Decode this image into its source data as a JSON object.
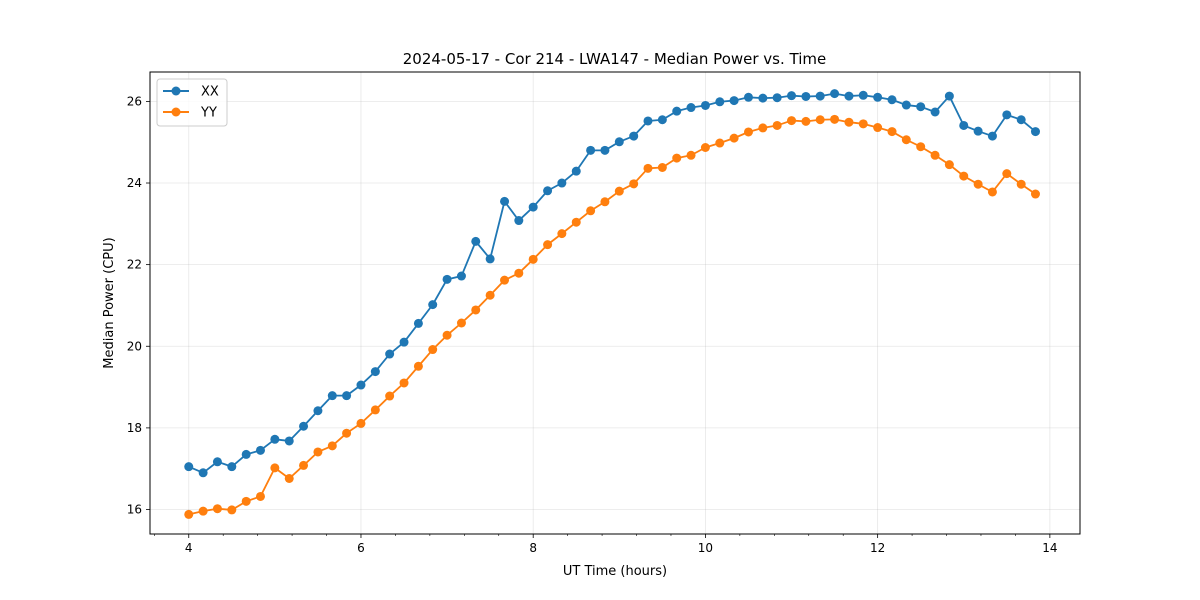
{
  "chart_data": {
    "type": "line",
    "title": "2024-05-17 - Cor 214 - LWA147 - Median Power vs. Time",
    "xlabel": "UT Time (hours)",
    "ylabel": "Median Power (CPU)",
    "xlim": [
      3.55,
      14.35
    ],
    "ylim": [
      15.4,
      26.72
    ],
    "xticks": [
      4,
      6,
      8,
      10,
      12,
      14
    ],
    "xtick_labels": [
      "4",
      "6",
      "8",
      "10",
      "12",
      "14"
    ],
    "yticks": [
      16,
      18,
      20,
      22,
      24,
      26
    ],
    "ytick_labels": [
      "16",
      "18",
      "20",
      "22",
      "24",
      "26"
    ],
    "grid": true,
    "legend_position": "top-left",
    "x": [
      4.0,
      4.167,
      4.333,
      4.5,
      4.667,
      4.833,
      5.0,
      5.167,
      5.333,
      5.5,
      5.667,
      5.833,
      6.0,
      6.167,
      6.333,
      6.5,
      6.667,
      6.833,
      7.0,
      7.167,
      7.333,
      7.5,
      7.667,
      7.833,
      8.0,
      8.167,
      8.333,
      8.5,
      8.667,
      8.833,
      9.0,
      9.167,
      9.333,
      9.5,
      9.667,
      9.833,
      10.0,
      10.167,
      10.333,
      10.5,
      10.667,
      10.833,
      11.0,
      11.167,
      11.333,
      11.5,
      11.667,
      11.833,
      12.0,
      12.167,
      12.333,
      12.5,
      12.667,
      12.833,
      13.0,
      13.167,
      13.333,
      13.5,
      13.667,
      13.833
    ],
    "series": [
      {
        "name": "XX",
        "color": "#1f77b4",
        "values": [
          17.05,
          16.9,
          17.17,
          17.05,
          17.35,
          17.45,
          17.72,
          17.68,
          18.04,
          18.42,
          18.79,
          18.79,
          19.05,
          19.38,
          19.81,
          20.1,
          20.56,
          21.02,
          21.64,
          21.72,
          22.57,
          22.14,
          23.55,
          23.08,
          23.41,
          23.81,
          24.0,
          24.29,
          24.8,
          24.8,
          25.01,
          25.15,
          25.52,
          25.55,
          25.76,
          25.85,
          25.9,
          25.99,
          26.02,
          26.1,
          26.08,
          26.09,
          26.14,
          26.12,
          26.13,
          26.19,
          26.13,
          26.15,
          26.1,
          26.04,
          25.91,
          25.87,
          25.74,
          26.13,
          25.41,
          25.27,
          25.15,
          25.67,
          25.55,
          25.26
        ]
      },
      {
        "name": "YY",
        "color": "#ff7f0e",
        "values": [
          15.88,
          15.96,
          16.02,
          15.99,
          16.2,
          16.32,
          17.02,
          16.76,
          17.08,
          17.41,
          17.56,
          17.87,
          18.11,
          18.44,
          18.78,
          19.1,
          19.51,
          19.92,
          20.27,
          20.57,
          20.89,
          21.25,
          21.62,
          21.79,
          22.13,
          22.49,
          22.76,
          23.04,
          23.32,
          23.54,
          23.8,
          23.98,
          24.36,
          24.38,
          24.61,
          24.68,
          24.87,
          24.98,
          25.1,
          25.25,
          25.35,
          25.41,
          25.53,
          25.51,
          25.55,
          25.56,
          25.49,
          25.45,
          25.36,
          25.26,
          25.06,
          24.89,
          24.68,
          24.45,
          24.17,
          23.97,
          23.78,
          24.23,
          23.97,
          23.73
        ]
      }
    ]
  }
}
